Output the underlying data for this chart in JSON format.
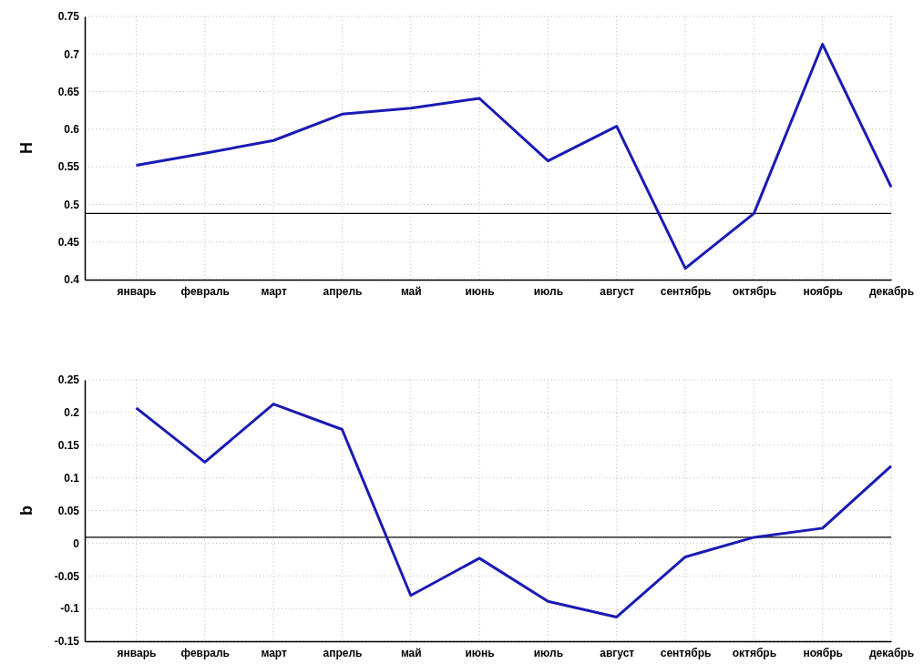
{
  "chart_data": [
    {
      "type": "line",
      "ylabel": "H",
      "categories": [
        "январь",
        "февраль",
        "март",
        "апрель",
        "май",
        "июнь",
        "июль",
        "август",
        "сентябрь",
        "октябрь",
        "ноябрь",
        "декабрь"
      ],
      "series": [
        {
          "color": "#1a1ab4",
          "values": [
            0.552,
            0.568,
            0.585,
            0.62,
            0.628,
            0.641,
            0.558,
            0.604,
            0.415,
            0.488,
            0.713,
            0.523
          ]
        }
      ],
      "ylim": [
        0.4,
        0.75
      ],
      "yticks": [
        0.4,
        0.45,
        0.5,
        0.55,
        0.6,
        0.65,
        0.7,
        0.75
      ],
      "grid": true,
      "marker": "none",
      "line_style": "solid",
      "ref_lines": [
        {
          "axis": "y",
          "value": 0.488,
          "color": "#000000"
        }
      ]
    },
    {
      "type": "line",
      "ylabel": "b",
      "categories": [
        "январь",
        "февраль",
        "март",
        "апрель",
        "май",
        "июнь",
        "июль",
        "август",
        "сентябрь",
        "октябрь",
        "ноябрь",
        "декабрь"
      ],
      "series": [
        {
          "color": "#1a1ab4",
          "values": [
            0.207,
            0.124,
            0.213,
            0.174,
            -0.08,
            -0.023,
            -0.089,
            -0.113,
            -0.021,
            0.009,
            0.023,
            0.118
          ]
        }
      ],
      "ylim": [
        -0.15,
        0.25
      ],
      "yticks": [
        -0.15,
        -0.1,
        -0.05,
        0,
        0.05,
        0.1,
        0.15,
        0.2,
        0.25
      ],
      "grid": true,
      "marker": "none",
      "line_style": "solid",
      "ref_lines": [
        {
          "axis": "y",
          "value": 0.009,
          "color": "#000000"
        }
      ]
    }
  ]
}
